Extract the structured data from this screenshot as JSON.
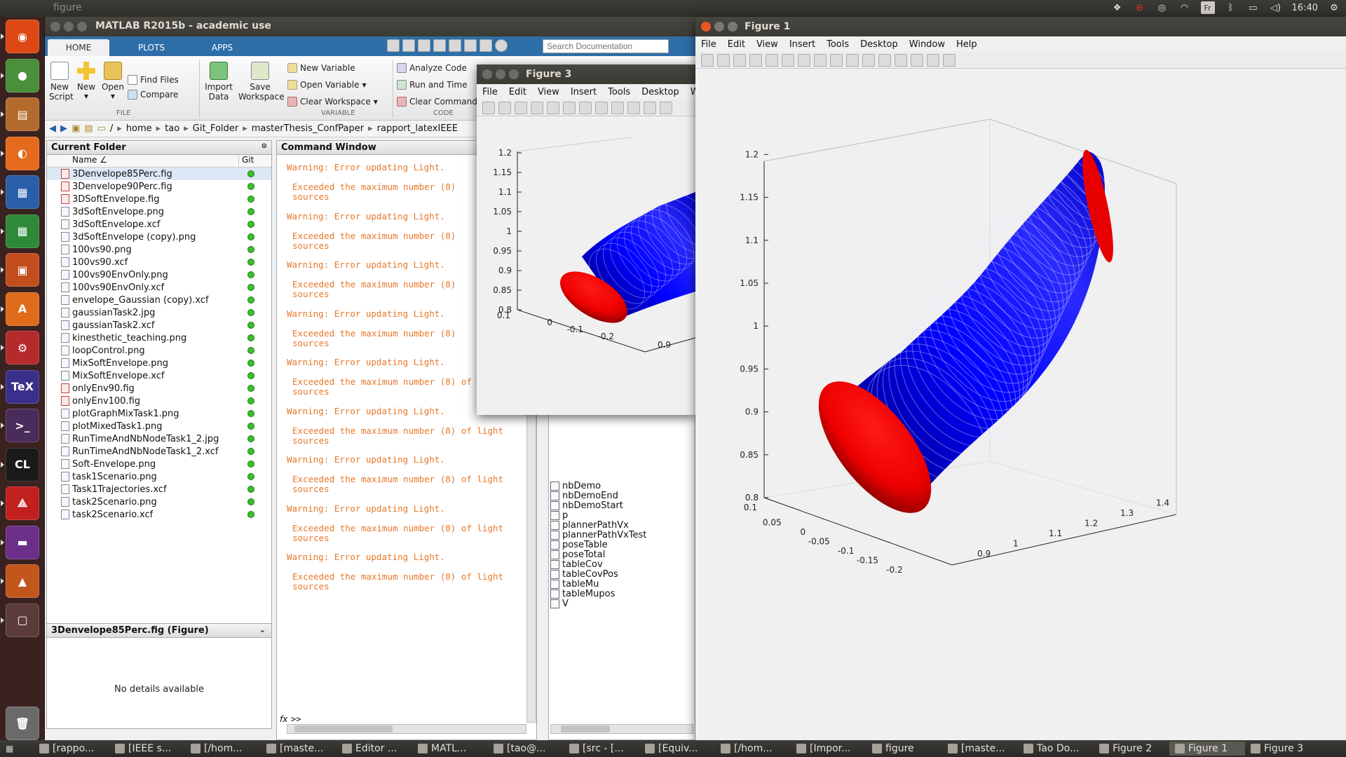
{
  "desktop": {
    "panel_title": "figure",
    "tray": {
      "keyboard": "Fr",
      "clock": "16:40"
    },
    "taskbar": [
      {
        "label": "[rappo...",
        "active": false
      },
      {
        "label": "[IEEE s...",
        "active": false
      },
      {
        "label": "[/hom...",
        "active": false
      },
      {
        "label": "[maste...",
        "active": false
      },
      {
        "label": "Editor ...",
        "active": false
      },
      {
        "label": "MATL...",
        "active": false
      },
      {
        "label": "[tao@...",
        "active": false
      },
      {
        "label": "[src - [...",
        "active": false
      },
      {
        "label": "[Equiv...",
        "active": false
      },
      {
        "label": "[/hom...",
        "active": false
      },
      {
        "label": "[Impor...",
        "active": false
      },
      {
        "label": "figure",
        "active": false
      },
      {
        "label": "[maste...",
        "active": false
      },
      {
        "label": "Tao Do...",
        "active": false
      },
      {
        "label": "Figure 2",
        "active": false
      },
      {
        "label": "Figure 1",
        "active": true
      },
      {
        "label": "Figure 3",
        "active": false
      }
    ],
    "launcher": [
      {
        "name": "ubuntu-dash-icon",
        "color": "#dd4814",
        "glyph": "◉"
      },
      {
        "name": "chrome-icon",
        "color": "#4a8f3a",
        "glyph": "●"
      },
      {
        "name": "files-icon",
        "color": "#b36b2d",
        "glyph": "▤"
      },
      {
        "name": "firefox-icon",
        "color": "#e66a1e",
        "glyph": "◐"
      },
      {
        "name": "writer-icon",
        "color": "#2a5ea8",
        "glyph": "▦"
      },
      {
        "name": "calc-icon",
        "color": "#2e8a36",
        "glyph": "▦"
      },
      {
        "name": "impress-icon",
        "color": "#c24e1d",
        "glyph": "▣"
      },
      {
        "name": "software-center-icon",
        "color": "#e06b1a",
        "glyph": "A"
      },
      {
        "name": "settings-icon",
        "color": "#b52a2a",
        "glyph": "⚙"
      },
      {
        "name": "texmaker-icon",
        "color": "#3b2f8c",
        "glyph": "TeX"
      },
      {
        "name": "terminal-icon",
        "color": "#4a2c5c",
        "glyph": ">_"
      },
      {
        "name": "clion-icon",
        "color": "#1a1a1a",
        "glyph": "CL"
      },
      {
        "name": "acrobat-icon",
        "color": "#c21f1f",
        "glyph": "⟁"
      },
      {
        "name": "app-window-icon",
        "color": "#6b2f8a",
        "glyph": "▬"
      },
      {
        "name": "matlab-icon",
        "color": "#c2561d",
        "glyph": "▲"
      },
      {
        "name": "workspace-switcher-icon",
        "color": "#5b3c3a",
        "glyph": "▢"
      },
      {
        "name": "trash-icon",
        "color": "#6a6a6a",
        "glyph": "🗑"
      }
    ]
  },
  "matlab": {
    "title": "MATLAB R2015b - academic use",
    "tabs": [
      "HOME",
      "PLOTS",
      "APPS"
    ],
    "search_placeholder": "Search Documentation",
    "ribbon": {
      "new_script": "New Script",
      "new": "New",
      "open": "Open",
      "find_files": "Find Files",
      "compare": "Compare",
      "import_data": "Import Data",
      "save_workspace": "Save Workspace",
      "new_variable": "New Variable",
      "open_variable": "Open Variable",
      "clear_workspace": "Clear Workspace",
      "analyze_code": "Analyze Code",
      "run_and_time": "Run and Time",
      "clear_commands": "Clear Commands",
      "section_file": "FILE",
      "section_variable": "VARIABLE",
      "section_code": "CODE"
    },
    "path": [
      "/",
      "home",
      "tao",
      "Git_Folder",
      "masterThesis_ConfPaper",
      "rapport_latexIEEE"
    ],
    "current_folder": {
      "title": "Current Folder",
      "col_name": "Name ∠",
      "col_git": "Git",
      "files": [
        {
          "name": "3Denvelope85Perc.fig",
          "type": "fig"
        },
        {
          "name": "3Denvelope90Perc.fig",
          "type": "fig"
        },
        {
          "name": "3DSoftEnvelope.fig",
          "type": "fig"
        },
        {
          "name": "3dSoftEnvelope.png",
          "type": "img"
        },
        {
          "name": "3dSoftEnvelope.xcf",
          "type": "doc"
        },
        {
          "name": "3dSoftEnvelope (copy).png",
          "type": "img"
        },
        {
          "name": "100vs90.png",
          "type": "img"
        },
        {
          "name": "100vs90.xcf",
          "type": "doc"
        },
        {
          "name": "100vs90EnvOnly.png",
          "type": "img"
        },
        {
          "name": "100vs90EnvOnly.xcf",
          "type": "doc"
        },
        {
          "name": "envelope_Gaussian (copy).xcf",
          "type": "doc"
        },
        {
          "name": "gaussianTask2.jpg",
          "type": "img"
        },
        {
          "name": "gaussianTask2.xcf",
          "type": "doc"
        },
        {
          "name": "kinesthetic_teaching.png",
          "type": "img"
        },
        {
          "name": "loopControl.png",
          "type": "img"
        },
        {
          "name": "MixSoftEnvelope.png",
          "type": "img"
        },
        {
          "name": "MixSoftEnvelope.xcf",
          "type": "doc"
        },
        {
          "name": "onlyEnv90.fig",
          "type": "fig"
        },
        {
          "name": "onlyEnv100.fig",
          "type": "fig"
        },
        {
          "name": "plotGraphMixTask1.png",
          "type": "img"
        },
        {
          "name": "plotMixedTask1.png",
          "type": "img"
        },
        {
          "name": "RunTimeAndNbNodeTask1_2.jpg",
          "type": "img"
        },
        {
          "name": "RunTimeAndNbNodeTask1_2.xcf",
          "type": "doc"
        },
        {
          "name": "Soft-Envelope.png",
          "type": "img"
        },
        {
          "name": "task1Scenario.png",
          "type": "img"
        },
        {
          "name": "Task1Trajectories.xcf",
          "type": "doc"
        },
        {
          "name": "task2Scenario.png",
          "type": "img"
        },
        {
          "name": "task2Scenario.xcf",
          "type": "doc"
        }
      ],
      "details_title": "3Denvelope85Perc.fig (Figure)",
      "details_body": "No details available"
    },
    "command_window": {
      "title": "Command Window",
      "warning": "Warning: Error updating Light.",
      "exceeded_short": "Exceeded the maximum number (8)",
      "exceeded_full": "Exceeded the maximum number (8) of light",
      "sources": "sources",
      "prompt": ">>",
      "fx": "fx"
    },
    "workspace": {
      "items": [
        "nbDemo",
        "nbDemoEnd",
        "nbDemoStart",
        "p",
        "plannerPathVx",
        "plannerPathVxTest",
        "poseTable",
        "poseTotal",
        "tableCov",
        "tableCovPos",
        "tableMu",
        "tableMupos",
        "V"
      ]
    }
  },
  "figure3": {
    "title": "Figure 3",
    "menu": [
      "File",
      "Edit",
      "View",
      "Insert",
      "Tools",
      "Desktop",
      "W"
    ]
  },
  "figure1": {
    "title": "Figure 1",
    "menu": [
      "File",
      "Edit",
      "View",
      "Insert",
      "Tools",
      "Desktop",
      "Window",
      "Help"
    ]
  },
  "chart_data": [
    {
      "type": "surface3d",
      "window": "Figure 1",
      "z_ticks": [
        "0.8",
        "0.85",
        "0.9",
        "0.95",
        "1",
        "1.05",
        "1.1",
        "1.15",
        "1.2"
      ],
      "y_ticks": [
        "0.1",
        "0.05",
        "0",
        "-0.05",
        "-0.1",
        "-0.15",
        "-0.2"
      ],
      "x_ticks": [
        "0.9",
        "1",
        "1.1",
        "1.2",
        "1.3",
        "1.4"
      ],
      "zlim": [
        0.8,
        1.2
      ],
      "ylim": [
        -0.2,
        0.1
      ],
      "xlim": [
        0.9,
        1.4
      ],
      "colors": {
        "envelope": "#0000ff",
        "end_caps": "#ff0000"
      }
    },
    {
      "type": "surface3d",
      "window": "Figure 3",
      "z_ticks": [
        "0.8",
        "0.85",
        "0.9",
        "0.95",
        "1",
        "1.05",
        "1.1",
        "1.15",
        "1.2"
      ],
      "y_ticks": [
        "0.1",
        "0",
        "-0.1",
        "-0.2"
      ],
      "x_ticks": [
        "0.9"
      ],
      "zlim": [
        0.8,
        1.2
      ],
      "colors": {
        "envelope": "#0000ff",
        "end_caps": "#ff0000"
      }
    }
  ]
}
